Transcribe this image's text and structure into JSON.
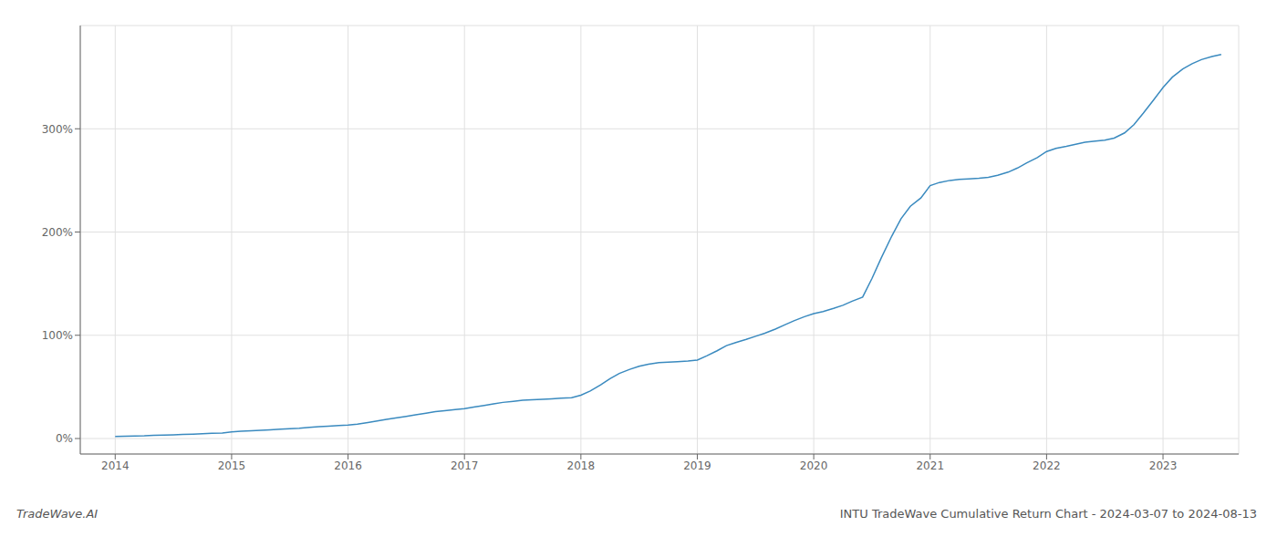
{
  "chart_data": {
    "type": "line",
    "title": "INTU TradeWave Cumulative Return Chart - 2024-03-07 to 2024-08-13",
    "annotations": [
      "TradeWave.AI"
    ],
    "color": "#3a8abf",
    "grid": true,
    "xlim": [
      2013.7,
      2023.65
    ],
    "xticks": [
      2014,
      2015,
      2016,
      2017,
      2018,
      2019,
      2020,
      2021,
      2022,
      2023
    ],
    "ylim": [
      -15,
      400
    ],
    "yticks": [
      {
        "value": 0,
        "label": "0%"
      },
      {
        "value": 100,
        "label": "100%"
      },
      {
        "value": 200,
        "label": "200%"
      },
      {
        "value": 300,
        "label": "300%"
      }
    ],
    "x": [
      2014.0,
      2014.08,
      2014.17,
      2014.25,
      2014.33,
      2014.42,
      2014.5,
      2014.58,
      2014.67,
      2014.75,
      2014.83,
      2014.92,
      2015.0,
      2015.08,
      2015.17,
      2015.25,
      2015.33,
      2015.42,
      2015.5,
      2015.58,
      2015.67,
      2015.75,
      2015.83,
      2015.92,
      2016.0,
      2016.08,
      2016.17,
      2016.25,
      2016.33,
      2016.42,
      2016.5,
      2016.58,
      2016.67,
      2016.75,
      2016.83,
      2016.92,
      2017.0,
      2017.08,
      2017.17,
      2017.25,
      2017.33,
      2017.42,
      2017.5,
      2017.58,
      2017.67,
      2017.75,
      2017.83,
      2017.92,
      2018.0,
      2018.08,
      2018.17,
      2018.25,
      2018.33,
      2018.42,
      2018.5,
      2018.58,
      2018.67,
      2018.75,
      2018.83,
      2018.92,
      2019.0,
      2019.08,
      2019.17,
      2019.25,
      2019.33,
      2019.42,
      2019.5,
      2019.58,
      2019.67,
      2019.75,
      2019.83,
      2019.92,
      2020.0,
      2020.08,
      2020.17,
      2020.25,
      2020.33,
      2020.42,
      2020.5,
      2020.58,
      2020.67,
      2020.75,
      2020.83,
      2020.92,
      2021.0,
      2021.08,
      2021.17,
      2021.25,
      2021.33,
      2021.42,
      2021.5,
      2021.58,
      2021.67,
      2021.75,
      2021.83,
      2021.92,
      2022.0,
      2022.08,
      2022.17,
      2022.25,
      2022.33,
      2022.42,
      2022.5,
      2022.58,
      2022.67,
      2022.75,
      2022.83,
      2022.92,
      2023.0,
      2023.08,
      2023.17,
      2023.25,
      2023.33,
      2023.42,
      2023.5
    ],
    "values": [
      2.0,
      2.2,
      2.4,
      2.6,
      3.0,
      3.3,
      3.6,
      4.0,
      4.3,
      4.6,
      5.0,
      5.3,
      6.5,
      7.0,
      7.5,
      8.0,
      8.5,
      9.0,
      9.5,
      10.0,
      10.8,
      11.5,
      12.0,
      12.5,
      13.0,
      14.0,
      15.5,
      17.0,
      18.5,
      20.0,
      21.5,
      23.0,
      24.5,
      26.0,
      27.0,
      28.0,
      29.0,
      30.5,
      32.0,
      33.5,
      35.0,
      36.0,
      37.0,
      37.5,
      38.0,
      38.5,
      39.0,
      39.5,
      42.0,
      46.0,
      52.0,
      58.0,
      63.0,
      67.0,
      70.0,
      72.0,
      73.5,
      74.0,
      74.5,
      75.0,
      76.0,
      80.0,
      85.0,
      90.0,
      93.0,
      96.0,
      99.0,
      102.0,
      106.0,
      110.0,
      114.0,
      118.0,
      121.0,
      123.0,
      126.0,
      129.0,
      133.0,
      137.0,
      155.0,
      175.0,
      196.0,
      213.0,
      225.0,
      233.0,
      245.0,
      248.0,
      250.0,
      251.0,
      251.5,
      252.0,
      253.0,
      255.0,
      258.0,
      262.0,
      267.0,
      272.0,
      278.0,
      281.0,
      283.0,
      285.0,
      287.0,
      288.0,
      289.0,
      291.0,
      296.0,
      304.0,
      315.0,
      328.0,
      340.0,
      350.0,
      358.0,
      363.0,
      367.0,
      370.0,
      372.0
    ]
  }
}
